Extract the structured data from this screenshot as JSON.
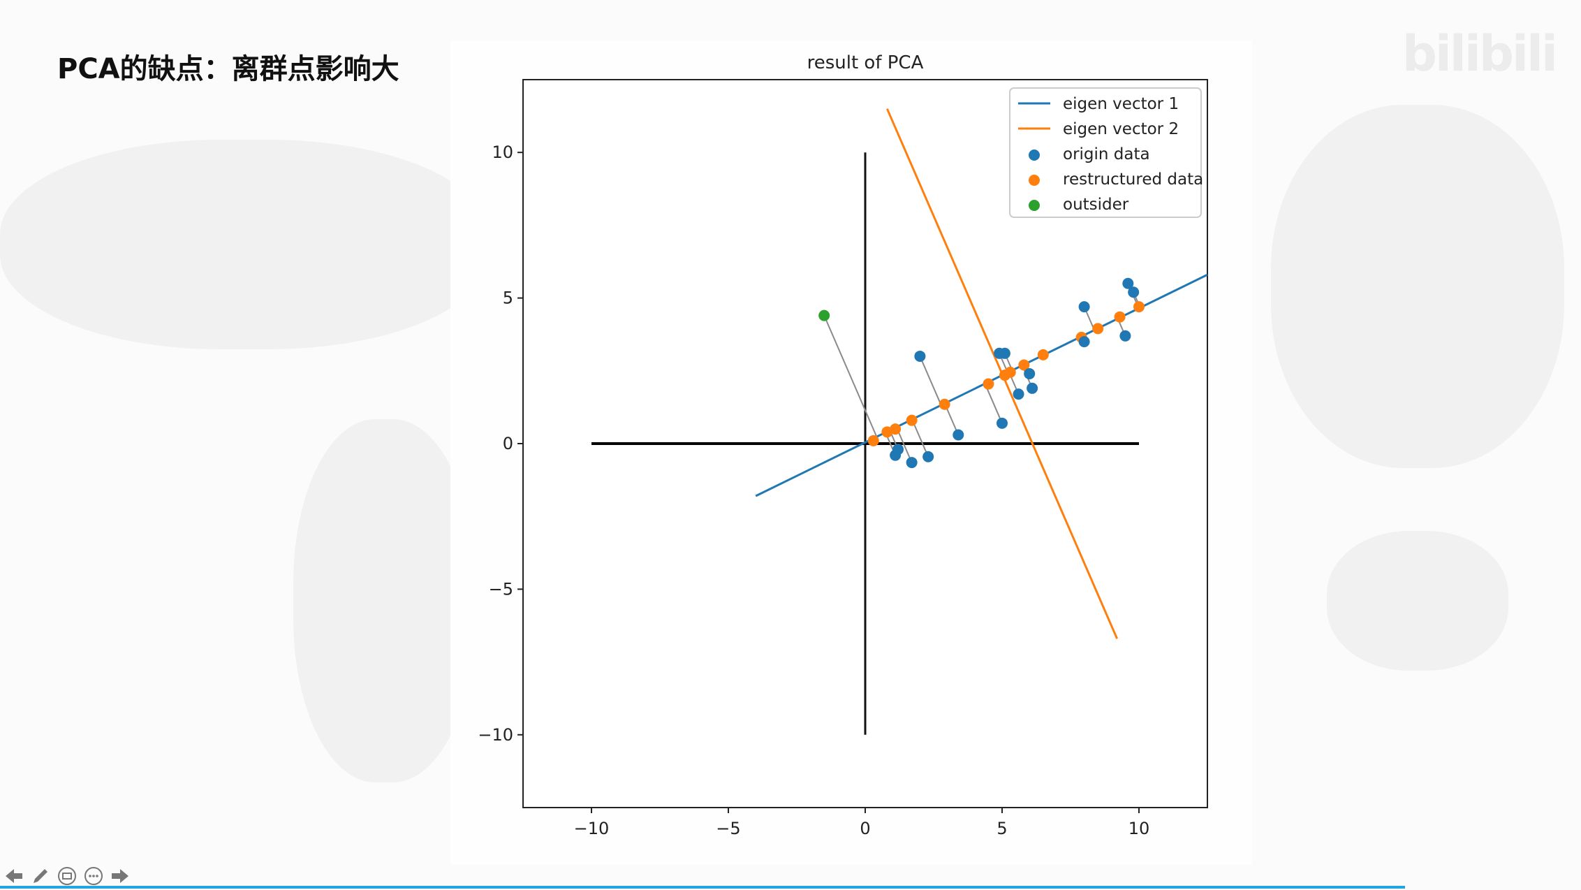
{
  "slide": {
    "title": "PCA的缺点：离群点影响大",
    "watermark": "bilibili"
  },
  "toolbar": {
    "icons": [
      "arrow-left-icon",
      "pen-icon",
      "subtitles-icon",
      "more-icon",
      "arrow-right-icon"
    ]
  },
  "colors": {
    "eigen1": "#1f77b4",
    "eigen2": "#ff7f0e",
    "origin": "#1f77b4",
    "restructured": "#ff7f0e",
    "outsider": "#2ca02c",
    "accent_bar": "#21a5e3"
  },
  "chart_data": {
    "type": "scatter",
    "title": "result of PCA",
    "xlabel": "",
    "ylabel": "",
    "xlim": [
      -12.5,
      12.5
    ],
    "ylim": [
      -12.5,
      12.5
    ],
    "xticks": [
      -10,
      -5,
      0,
      5,
      10
    ],
    "yticks": [
      -10,
      -5,
      0,
      5,
      10
    ],
    "xtick_labels": [
      "−10",
      "−5",
      "0",
      "5",
      "10"
    ],
    "ytick_labels": [
      "−10",
      "−5",
      "0",
      "5",
      "10"
    ],
    "grid": false,
    "legend_position": "top-right",
    "legend": [
      "eigen vector 1",
      "eigen vector 2",
      "origin data",
      "restructured data",
      "outsider"
    ],
    "axes_lines": {
      "horizontal": [
        [
          -10,
          0
        ],
        [
          10,
          0
        ]
      ],
      "vertical": [
        [
          0,
          -10
        ],
        [
          0,
          10
        ]
      ]
    },
    "eigen_vector_1": [
      [
        -4.0,
        -1.8
      ],
      [
        12.5,
        5.8
      ]
    ],
    "eigen_vector_2": [
      [
        0.8,
        11.5
      ],
      [
        9.2,
        -6.7
      ]
    ],
    "origin_data": [
      [
        1.1,
        -0.4
      ],
      [
        1.2,
        -0.2
      ],
      [
        1.7,
        -0.65
      ],
      [
        2.3,
        -0.45
      ],
      [
        2.0,
        3.0
      ],
      [
        3.4,
        0.3
      ],
      [
        4.9,
        3.1
      ],
      [
        5.1,
        3.1
      ],
      [
        5.0,
        0.7
      ],
      [
        5.6,
        1.7
      ],
      [
        6.0,
        2.4
      ],
      [
        6.1,
        1.9
      ],
      [
        8.0,
        4.7
      ],
      [
        8.0,
        3.5
      ],
      [
        9.5,
        3.7
      ],
      [
        9.6,
        5.5
      ],
      [
        9.8,
        5.2
      ]
    ],
    "restructured_data": [
      [
        0.3,
        0.1
      ],
      [
        0.8,
        0.4
      ],
      [
        1.1,
        0.5
      ],
      [
        1.7,
        0.8
      ],
      [
        2.9,
        1.35
      ],
      [
        4.5,
        2.05
      ],
      [
        5.1,
        2.35
      ],
      [
        5.3,
        2.45
      ],
      [
        5.8,
        2.7
      ],
      [
        6.5,
        3.05
      ],
      [
        7.9,
        3.65
      ],
      [
        8.5,
        3.95
      ],
      [
        9.3,
        4.35
      ],
      [
        10.0,
        4.7
      ]
    ],
    "outsider": [
      [
        -1.5,
        4.4
      ]
    ]
  }
}
